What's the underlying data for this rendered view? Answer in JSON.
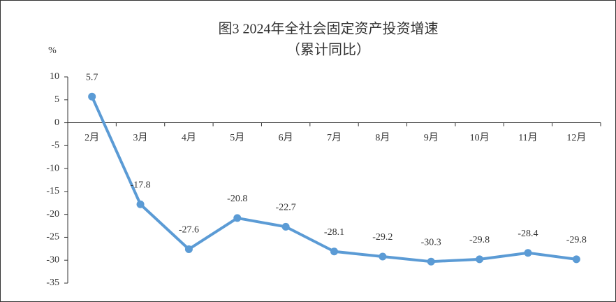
{
  "chart_data": {
    "type": "line",
    "title": "图3  2024年全社会固定资产投资增速",
    "subtitle": "（累计同比）",
    "y_label": "%",
    "categories": [
      "2月",
      "3月",
      "4月",
      "5月",
      "6月",
      "7月",
      "8月",
      "9月",
      "10月",
      "11月",
      "12月"
    ],
    "values": [
      5.7,
      -17.8,
      -27.6,
      -20.8,
      -22.7,
      -28.1,
      -29.2,
      -30.3,
      -29.8,
      -28.4,
      -29.8
    ],
    "color": "#5b9bd5",
    "ylim": [
      -35,
      10
    ],
    "yticks": [
      -35,
      -30,
      -25,
      -20,
      -15,
      -10,
      -5,
      0,
      5,
      10
    ],
    "grid": false
  }
}
